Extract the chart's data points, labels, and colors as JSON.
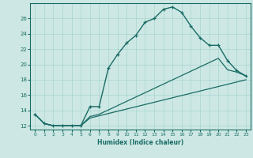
{
  "xlabel": "Humidex (Indice chaleur)",
  "bg_color": "#cde8e4",
  "grid_color": "#a8d4cf",
  "line_color": "#1a6b65",
  "xlim": [
    -0.5,
    23.5
  ],
  "ylim": [
    11.5,
    28
  ],
  "xticks": [
    0,
    1,
    2,
    3,
    4,
    5,
    6,
    7,
    8,
    9,
    10,
    11,
    12,
    13,
    14,
    15,
    16,
    17,
    18,
    19,
    20,
    21,
    22,
    23
  ],
  "yticks": [
    12,
    14,
    16,
    18,
    20,
    22,
    24,
    26
  ],
  "line1_x": [
    0,
    1,
    2,
    3,
    4,
    5,
    6,
    7,
    8,
    9,
    10,
    11,
    12,
    13,
    14,
    15,
    16,
    17,
    18,
    19,
    20,
    21,
    22,
    23
  ],
  "line1_y": [
    13.5,
    12.3,
    12.0,
    12.0,
    12.0,
    12.0,
    14.5,
    14.5,
    19.5,
    21.3,
    22.8,
    23.8,
    25.5,
    26.0,
    27.2,
    27.5,
    26.8,
    25.0,
    23.5,
    22.5,
    22.5,
    20.5,
    19.2,
    18.5
  ],
  "line2_x": [
    0,
    1,
    2,
    3,
    4,
    5,
    6,
    7,
    20,
    21,
    22,
    23
  ],
  "line2_y": [
    13.5,
    12.3,
    12.0,
    12.0,
    12.0,
    12.0,
    13.2,
    13.5,
    20.8,
    19.3,
    19.0,
    18.5
  ],
  "line3_x": [
    0,
    1,
    2,
    3,
    4,
    5,
    6,
    7,
    23
  ],
  "line3_y": [
    13.5,
    12.3,
    12.0,
    12.0,
    12.0,
    12.0,
    13.0,
    13.3,
    18.0
  ]
}
